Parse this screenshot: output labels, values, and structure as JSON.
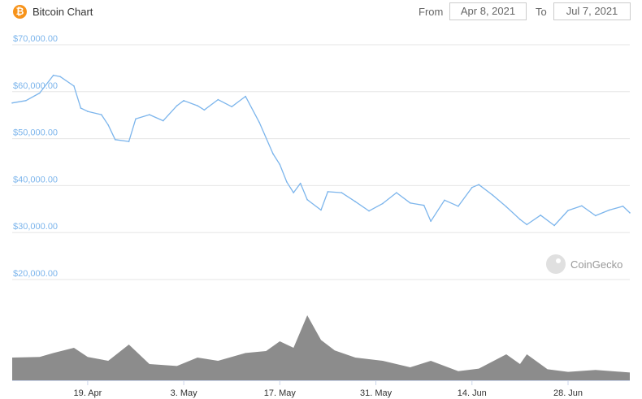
{
  "header": {
    "title": "Bitcoin Chart",
    "from_label": "From",
    "from_date": "Apr 8, 2021",
    "to_label": "To",
    "to_date": "Jul 7, 2021"
  },
  "watermark": "CoinGecko",
  "colors": {
    "price_line": "#7cb5ec",
    "volume": "#8c8c8c",
    "grid": "#e6e6e6",
    "logo": "#f7931a"
  },
  "icons": {
    "logo": "bitcoin-icon",
    "watermark": "coingecko-gecko-icon"
  },
  "chart_data": {
    "type": "line",
    "title": "Bitcoin Chart",
    "ylim": [
      20000,
      70000
    ],
    "y_ticks": [
      {
        "value": 70000,
        "label": "$70,000.00"
      },
      {
        "value": 60000,
        "label": "$60,000.00"
      },
      {
        "value": 50000,
        "label": "$50,000.00"
      },
      {
        "value": 40000,
        "label": "$40,000.00"
      },
      {
        "value": 30000,
        "label": "$30,000.00"
      },
      {
        "value": 20000,
        "label": "$20,000.00"
      }
    ],
    "x_ticks": [
      {
        "date": "2021-04-19",
        "label": "19. Apr"
      },
      {
        "date": "2021-05-03",
        "label": "3. May"
      },
      {
        "date": "2021-05-17",
        "label": "17. May"
      },
      {
        "date": "2021-05-31",
        "label": "31. May"
      },
      {
        "date": "2021-06-14",
        "label": "14. Jun"
      },
      {
        "date": "2021-06-28",
        "label": "28. Jun"
      }
    ],
    "price_series": {
      "x": [
        "2021-04-08",
        "2021-04-10",
        "2021-04-12",
        "2021-04-14",
        "2021-04-15",
        "2021-04-17",
        "2021-04-18",
        "2021-04-19",
        "2021-04-21",
        "2021-04-22",
        "2021-04-23",
        "2021-04-25",
        "2021-04-26",
        "2021-04-28",
        "2021-04-30",
        "2021-05-02",
        "2021-05-03",
        "2021-05-05",
        "2021-05-06",
        "2021-05-08",
        "2021-05-10",
        "2021-05-12",
        "2021-05-14",
        "2021-05-16",
        "2021-05-17",
        "2021-05-18",
        "2021-05-19",
        "2021-05-20",
        "2021-05-21",
        "2021-05-23",
        "2021-05-24",
        "2021-05-26",
        "2021-05-28",
        "2021-05-30",
        "2021-06-01",
        "2021-06-03",
        "2021-06-05",
        "2021-06-07",
        "2021-06-08",
        "2021-06-10",
        "2021-06-12",
        "2021-06-14",
        "2021-06-15",
        "2021-06-17",
        "2021-06-19",
        "2021-06-21",
        "2021-06-22",
        "2021-06-24",
        "2021-06-26",
        "2021-06-28",
        "2021-06-30",
        "2021-07-02",
        "2021-07-04",
        "2021-07-06",
        "2021-07-07"
      ],
      "y": [
        57600,
        58100,
        59700,
        63500,
        63200,
        61200,
        56500,
        55800,
        55100,
        52900,
        49800,
        49400,
        54200,
        55100,
        53800,
        57000,
        58100,
        57000,
        56100,
        58300,
        56800,
        59000,
        53500,
        46800,
        44500,
        40800,
        38500,
        40500,
        37000,
        34800,
        38700,
        38500,
        36600,
        34600,
        36200,
        38500,
        36300,
        35800,
        32400,
        36900,
        35600,
        39600,
        40200,
        38000,
        35500,
        32800,
        31700,
        33700,
        31500,
        34700,
        35700,
        33600,
        34800,
        35600,
        34200
      ]
    },
    "volume_series": {
      "x": [
        "2021-04-08",
        "2021-04-12",
        "2021-04-14",
        "2021-04-17",
        "2021-04-19",
        "2021-04-22",
        "2021-04-25",
        "2021-04-28",
        "2021-05-02",
        "2021-05-05",
        "2021-05-08",
        "2021-05-12",
        "2021-05-15",
        "2021-05-17",
        "2021-05-19",
        "2021-05-21",
        "2021-05-23",
        "2021-05-25",
        "2021-05-28",
        "2021-06-01",
        "2021-06-05",
        "2021-06-08",
        "2021-06-12",
        "2021-06-15",
        "2021-06-19",
        "2021-06-21",
        "2021-06-22",
        "2021-06-25",
        "2021-06-28",
        "2021-07-02",
        "2021-07-07"
      ],
      "relative": [
        0.35,
        0.36,
        0.42,
        0.5,
        0.36,
        0.3,
        0.55,
        0.25,
        0.22,
        0.35,
        0.3,
        0.42,
        0.45,
        0.6,
        0.5,
        1.0,
        0.62,
        0.46,
        0.35,
        0.3,
        0.2,
        0.3,
        0.14,
        0.18,
        0.4,
        0.25,
        0.4,
        0.17,
        0.13,
        0.16,
        0.12
      ]
    }
  }
}
